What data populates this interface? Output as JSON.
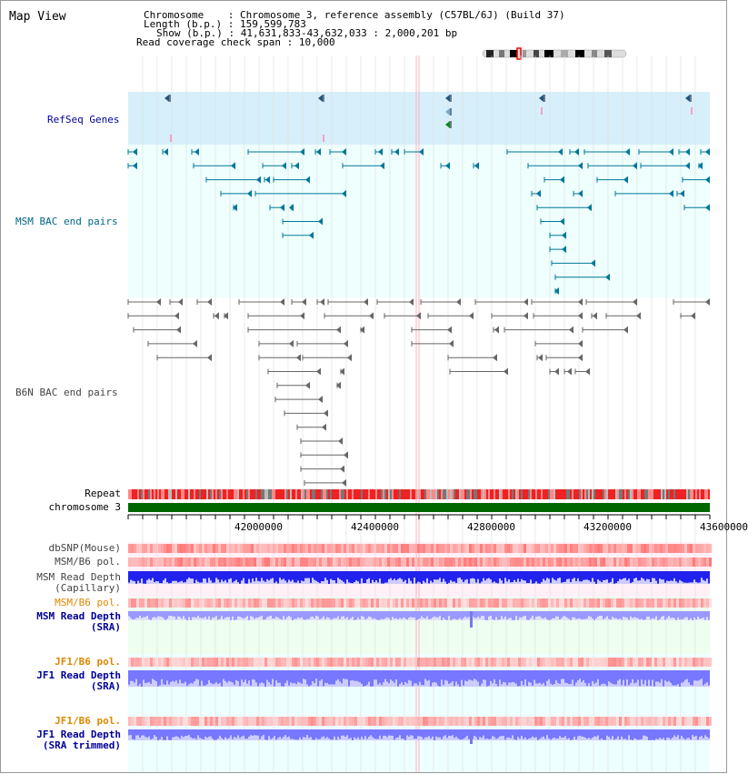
{
  "title": "Map View",
  "header": {
    "chromosome_key": "Chromosome",
    "chromosome_val": "Chromosome 3, reference assembly (C57BL/6J) (Build 37)",
    "length_key": "Length (b.p.)",
    "length_val": "159,599,783",
    "show_key": "Show (b.p.)",
    "show_val": "41,631,833-43,632,033 : 2,000,201 bp",
    "span_key": "Read coverage check span",
    "span_val": "10,000"
  },
  "tracks": {
    "refseq": "RefSeq Genes",
    "msm_bac": "MSM BAC end pairs",
    "b6n_bac": "B6N BAC end pairs",
    "repeat": "Repeat",
    "chromosome": "chromosome 3",
    "dbsnp": "dbSNP(Mouse)",
    "msm_b6_pol_1": "MSM/B6 pol.",
    "msm_depth_cap_1": "MSM Read Depth",
    "msm_depth_cap_2": "(Capillary)",
    "msm_b6_pol_2": "MSM/B6 pol.",
    "msm_depth_sra_1": "MSM Read Depth",
    "msm_depth_sra_2": "(SRA)",
    "jf1_pol_1": "JF1/B6 pol.",
    "jf1_depth_1": "JF1 Read Depth",
    "jf1_depth_1b": "(SRA)",
    "jf1_pol_2": "JF1/B6 pol.",
    "jf1_depth_2": "JF1 Read Depth",
    "jf1_depth_2b": "(SRA trimmed)"
  },
  "axis": {
    "ticks": [
      "42000000",
      "42400000",
      "42800000",
      "43200000",
      "43600000"
    ]
  },
  "colors": {
    "refseq_bg": "#d7effa",
    "bac_bg": "#eefffd",
    "track_label_blue": "#000099",
    "msm_label": "#006688",
    "pol_label": "#dd8800",
    "depth_blue": "#3333ee",
    "depth_light": "#8888ff",
    "chromosome_green": "#006600"
  }
}
